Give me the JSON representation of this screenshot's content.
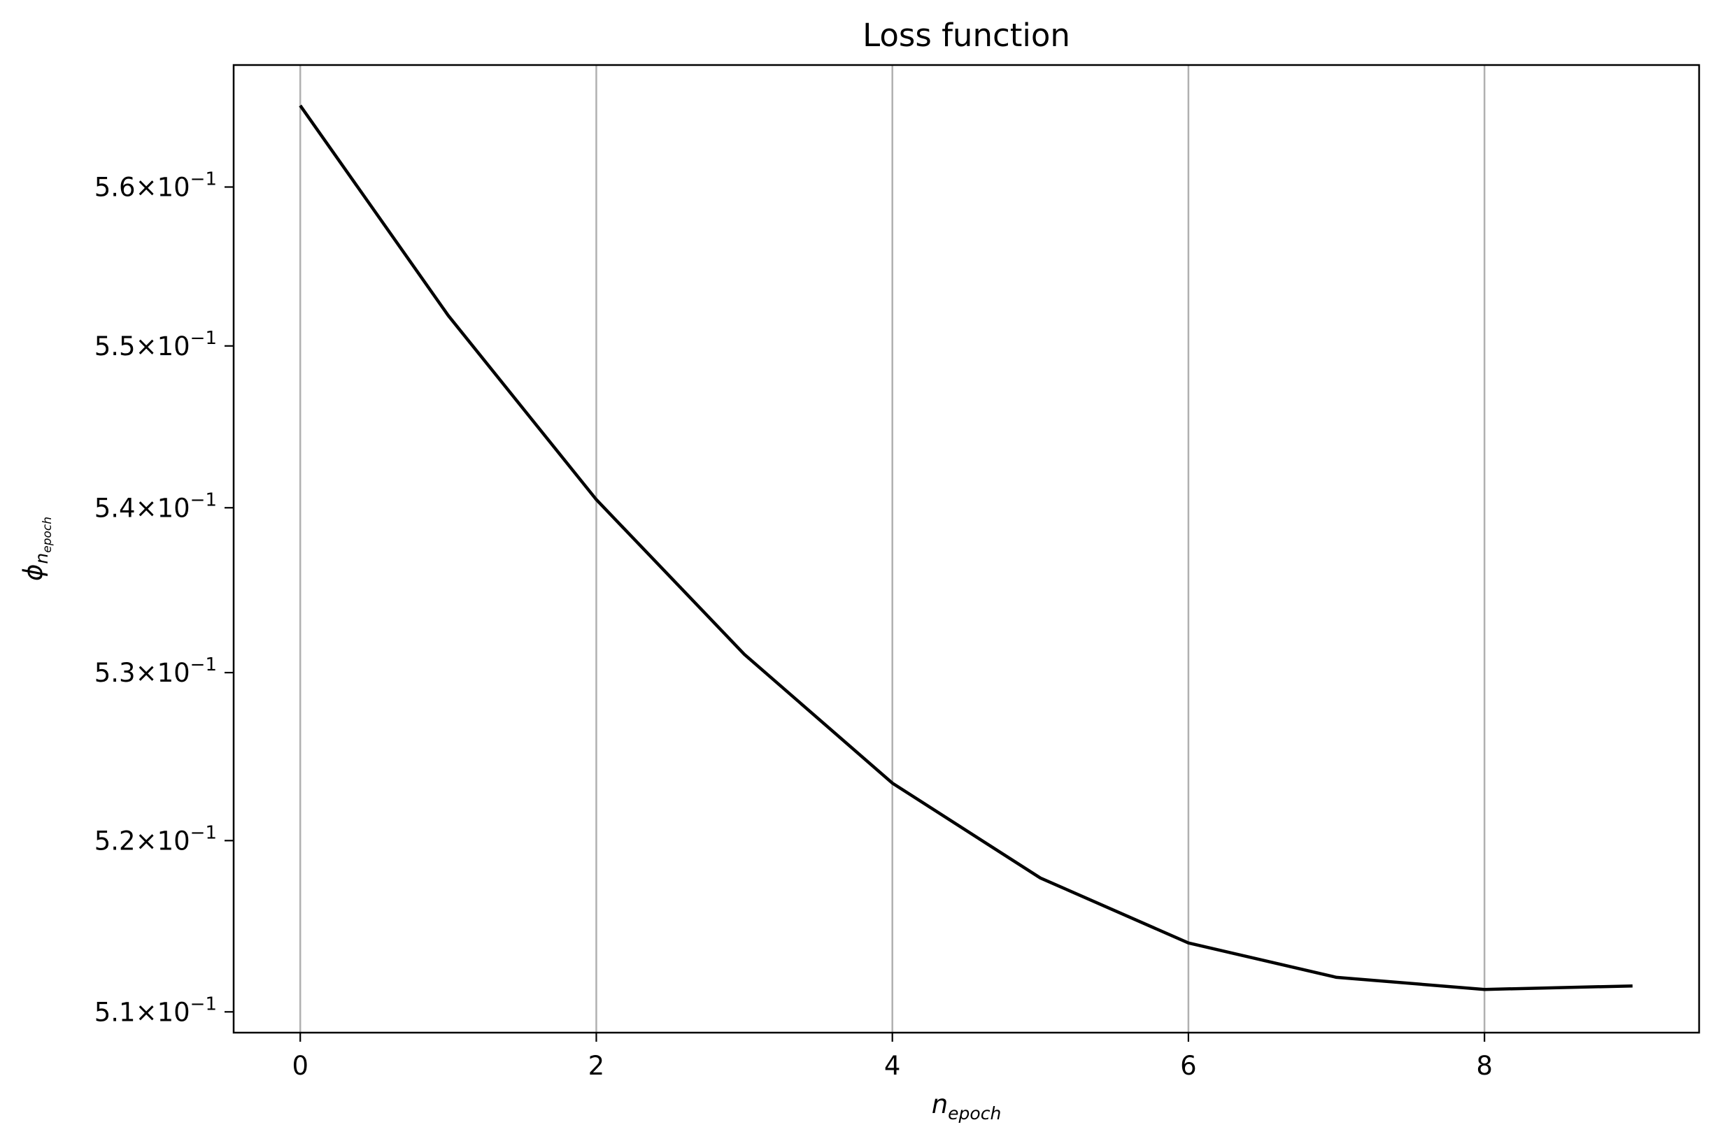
{
  "chart_data": {
    "type": "line",
    "title": "Loss function",
    "xlabel": {
      "base": "n",
      "subscript": "epoch"
    },
    "ylabel": {
      "base": "ϕ",
      "subscript": "n",
      "subsubscript": "epoch"
    },
    "yscale": "log",
    "grid": {
      "x": true,
      "y": false
    },
    "xlim": [
      -0.45,
      9.45
    ],
    "ylim": [
      0.5088,
      0.5678
    ],
    "xticks": [
      0,
      2,
      4,
      6,
      8
    ],
    "xtick_labels": [
      "0",
      "2",
      "4",
      "6",
      "8"
    ],
    "yticks": [
      0.51,
      0.52,
      0.53,
      0.54,
      0.55,
      0.56
    ],
    "ytick_labels": [
      {
        "mantissa": "5.1",
        "times": "×",
        "base": "10",
        "exponent": "−1"
      },
      {
        "mantissa": "5.2",
        "times": "×",
        "base": "10",
        "exponent": "−1"
      },
      {
        "mantissa": "5.3",
        "times": "×",
        "base": "10",
        "exponent": "−1"
      },
      {
        "mantissa": "5.4",
        "times": "×",
        "base": "10",
        "exponent": "−1"
      },
      {
        "mantissa": "5.5",
        "times": "×",
        "base": "10",
        "exponent": "−1"
      },
      {
        "mantissa": "5.6",
        "times": "×",
        "base": "10",
        "exponent": "−1"
      }
    ],
    "series": [
      {
        "color": "#000000",
        "x": [
          0,
          1,
          2,
          3,
          4,
          5,
          6,
          7,
          8,
          9
        ],
        "y": [
          0.5652,
          0.5519,
          0.5405,
          0.5311,
          0.5234,
          0.5178,
          0.514,
          0.512,
          0.5113,
          0.5115
        ]
      }
    ]
  }
}
